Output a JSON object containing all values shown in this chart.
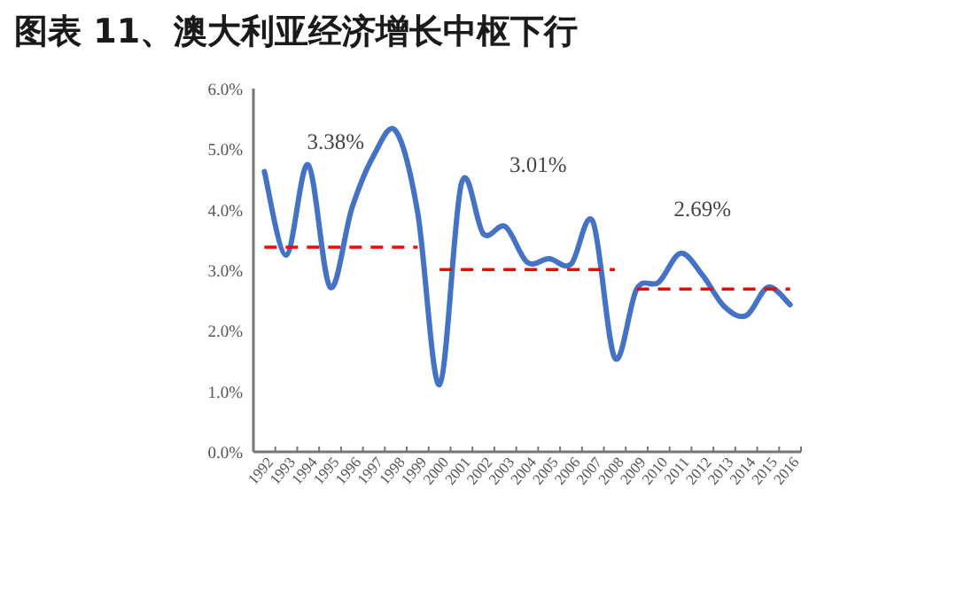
{
  "chart_data": {
    "type": "line",
    "title": "图表 11、澳大利亚经济增长中枢下行",
    "categories": [
      "1992",
      "1993",
      "1994",
      "1995",
      "1996",
      "1997",
      "1998",
      "1999",
      "2000",
      "2001",
      "2002",
      "2003",
      "2004",
      "2005",
      "2006",
      "2007",
      "2008",
      "2009",
      "2010",
      "2011",
      "2012",
      "2013",
      "2014",
      "2015",
      "2016"
    ],
    "series": [
      {
        "color": "#4472c4",
        "values": [
          4.63,
          3.25,
          4.74,
          2.72,
          4.03,
          4.9,
          5.3,
          3.95,
          1.11,
          4.44,
          3.6,
          3.72,
          3.13,
          3.19,
          3.1,
          3.8,
          1.55,
          2.69,
          2.8,
          3.28,
          2.92,
          2.4,
          2.25,
          2.72,
          2.43
        ]
      },
      {
        "color": "#ff0000",
        "line_style": "dashed",
        "values": [
          3.38,
          3.38,
          3.38,
          3.38,
          3.38,
          3.38,
          3.38,
          3.38,
          null,
          null,
          null,
          null,
          null,
          null,
          null,
          null,
          null,
          null,
          null,
          null,
          null,
          null,
          null,
          null,
          null
        ]
      },
      {
        "color": "#ff0000",
        "line_style": "dashed",
        "values": [
          null,
          null,
          null,
          null,
          null,
          null,
          null,
          null,
          3.01,
          3.01,
          3.01,
          3.01,
          3.01,
          3.01,
          3.01,
          3.01,
          3.01,
          null,
          null,
          null,
          null,
          null,
          null,
          null,
          null
        ]
      },
      {
        "color": "#ff0000",
        "line_style": "dashed",
        "values": [
          null,
          null,
          null,
          null,
          null,
          null,
          null,
          null,
          null,
          null,
          null,
          null,
          null,
          null,
          null,
          null,
          null,
          2.69,
          2.69,
          2.69,
          2.69,
          2.69,
          2.69,
          2.69,
          2.69
        ]
      }
    ],
    "annotations": [
      "3.38%",
      "3.01%",
      "2.69%"
    ],
    "ylim": [
      0,
      6
    ],
    "yticks": [
      {
        "value": 0,
        "label": "0.0%"
      },
      {
        "value": 1,
        "label": "1.0%"
      },
      {
        "value": 2,
        "label": "2.0%"
      },
      {
        "value": 3,
        "label": "3.0%"
      },
      {
        "value": 4,
        "label": "4.0%"
      },
      {
        "value": 5,
        "label": "5.0%"
      },
      {
        "value": 6,
        "label": "6.0%"
      }
    ],
    "grid": false,
    "marker": "none"
  }
}
